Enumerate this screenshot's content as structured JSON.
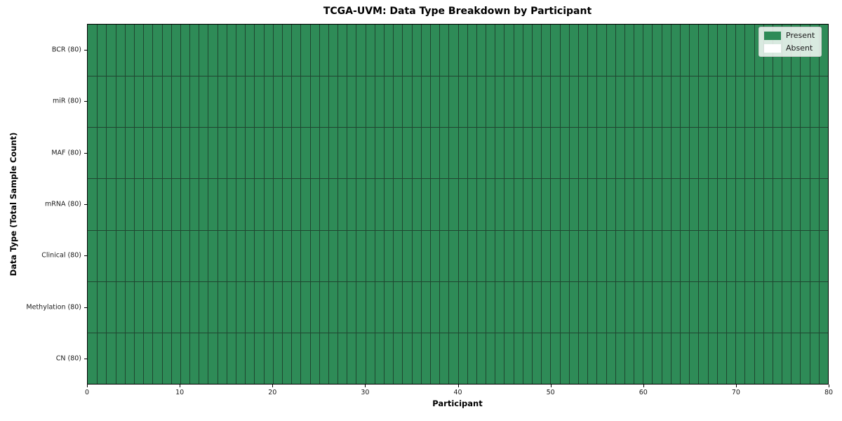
{
  "chart_data": {
    "type": "heatmap",
    "title": "TCGA-UVM: Data Type Breakdown by Participant",
    "xlabel": "Participant",
    "ylabel": "Data Type (Total Sample Count)",
    "x_range": [
      0,
      80
    ],
    "x_ticks": [
      0,
      10,
      20,
      30,
      40,
      50,
      60,
      70,
      80
    ],
    "n_participants": 80,
    "rows": [
      {
        "label": "BCR (80)",
        "data_type": "BCR",
        "total_samples": 80,
        "present_count": 80,
        "absent_count": 0
      },
      {
        "label": "miR (80)",
        "data_type": "miR",
        "total_samples": 80,
        "present_count": 80,
        "absent_count": 0
      },
      {
        "label": "MAF (80)",
        "data_type": "MAF",
        "total_samples": 80,
        "present_count": 80,
        "absent_count": 0
      },
      {
        "label": "mRNA (80)",
        "data_type": "mRNA",
        "total_samples": 80,
        "present_count": 80,
        "absent_count": 0
      },
      {
        "label": "Clinical (80)",
        "data_type": "Clinical",
        "total_samples": 80,
        "present_count": 80,
        "absent_count": 0
      },
      {
        "label": "Methylation (80)",
        "data_type": "Methylation",
        "total_samples": 80,
        "present_count": 80,
        "absent_count": 0
      },
      {
        "label": "CN (80)",
        "data_type": "CN",
        "total_samples": 80,
        "present_count": 80,
        "absent_count": 0
      }
    ],
    "legend": {
      "position": "upper-right",
      "entries": [
        {
          "label": "Present",
          "color": "#2e8b57"
        },
        {
          "label": "Absent",
          "color": "#ffffff"
        }
      ]
    }
  },
  "colors": {
    "present": "#2e8b57",
    "absent": "#ffffff",
    "cell_border": "#1f4630",
    "spine": "#000000",
    "background": "#ffffff"
  }
}
